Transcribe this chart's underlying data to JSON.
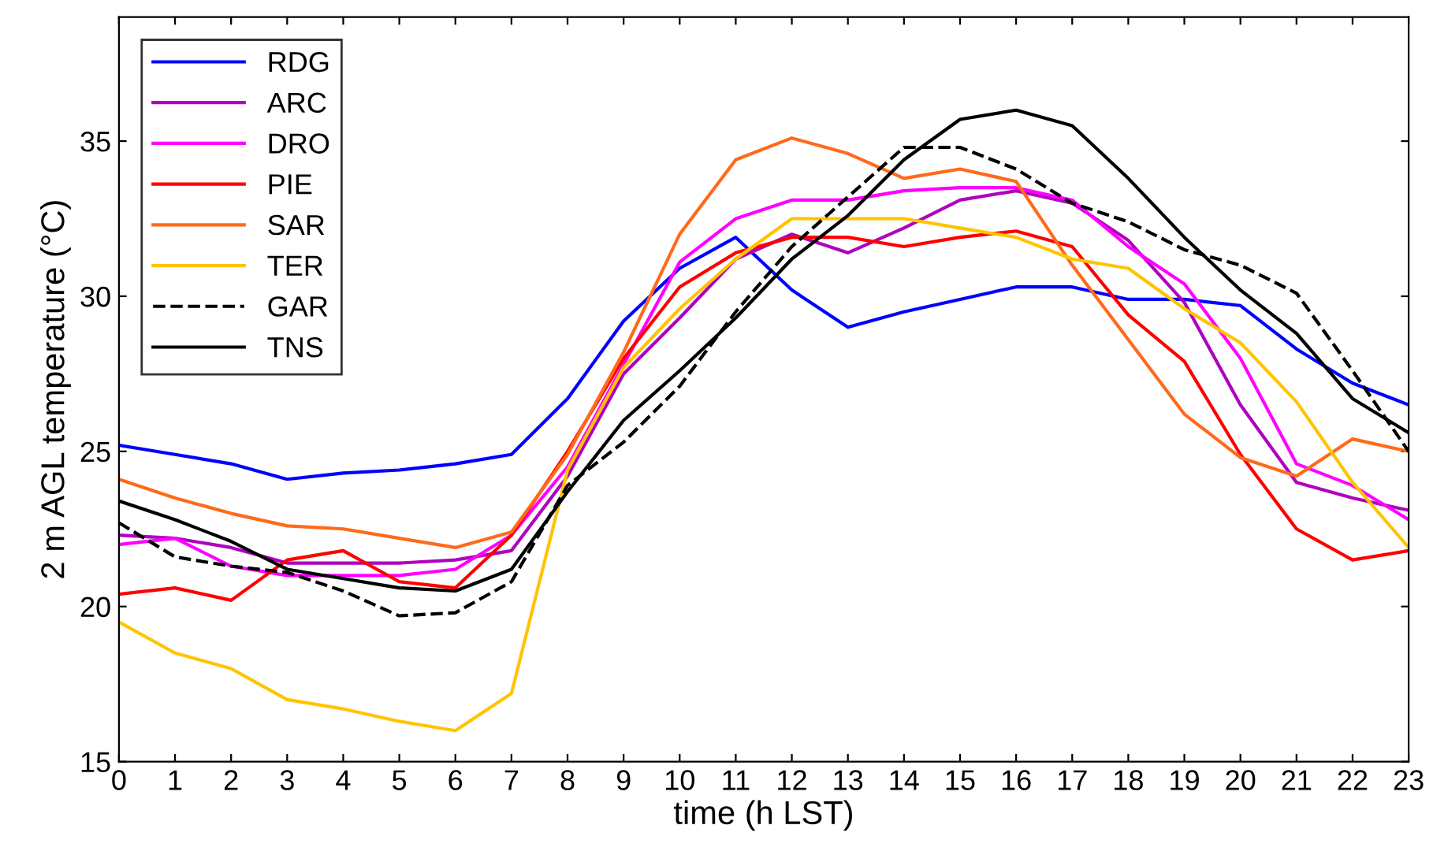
{
  "chart_data": {
    "type": "line",
    "xlabel": "time (h LST)",
    "ylabel": "2 m AGL temperature (°C)",
    "x": [
      0,
      1,
      2,
      3,
      4,
      5,
      6,
      7,
      8,
      9,
      10,
      11,
      12,
      13,
      14,
      15,
      16,
      17,
      18,
      19,
      20,
      21,
      22,
      23
    ],
    "xlim": [
      0,
      23
    ],
    "xticks": [
      0,
      1,
      2,
      3,
      4,
      5,
      6,
      7,
      8,
      9,
      10,
      11,
      12,
      13,
      14,
      15,
      16,
      17,
      18,
      19,
      20,
      21,
      22,
      23
    ],
    "ylim": [
      15,
      39
    ],
    "yticks": [
      15,
      20,
      25,
      30,
      35
    ],
    "grid": false,
    "legend": "top left",
    "series": [
      {
        "name": "RDG",
        "color": "#0000ff",
        "line_style": "solid",
        "values": [
          25.2,
          24.9,
          24.6,
          24.1,
          24.3,
          24.4,
          24.6,
          24.9,
          26.7,
          29.2,
          30.9,
          31.9,
          30.2,
          29.0,
          29.5,
          29.9,
          30.3,
          30.3,
          29.9,
          29.9,
          29.7,
          28.3,
          27.2,
          26.5
        ]
      },
      {
        "name": "ARC",
        "color": "#b000c0",
        "line_style": "solid",
        "values": [
          22.3,
          22.2,
          21.9,
          21.4,
          21.4,
          21.4,
          21.5,
          21.8,
          24.2,
          27.5,
          29.3,
          31.2,
          32.0,
          31.4,
          32.2,
          33.1,
          33.4,
          33.0,
          31.8,
          29.8,
          26.5,
          24.0,
          23.5,
          23.1
        ]
      },
      {
        "name": "DRO",
        "color": "#ff00ff",
        "line_style": "solid",
        "values": [
          22.0,
          22.2,
          21.3,
          21.0,
          21.0,
          21.0,
          21.2,
          22.3,
          24.5,
          27.8,
          31.1,
          32.5,
          33.1,
          33.1,
          33.4,
          33.5,
          33.5,
          33.1,
          31.6,
          30.4,
          28.0,
          24.6,
          23.9,
          22.8
        ]
      },
      {
        "name": "PIE",
        "color": "#ff0000",
        "line_style": "solid",
        "values": [
          20.4,
          20.6,
          20.2,
          21.5,
          21.8,
          20.8,
          20.6,
          22.3,
          25.0,
          28.0,
          30.3,
          31.4,
          31.9,
          31.9,
          31.6,
          31.9,
          32.1,
          31.6,
          29.4,
          27.9,
          24.9,
          22.5,
          21.5,
          21.8
        ]
      },
      {
        "name": "SAR",
        "color": "#ff6a1a",
        "line_style": "solid",
        "values": [
          24.1,
          23.5,
          23.0,
          22.6,
          22.5,
          22.2,
          21.9,
          22.4,
          24.9,
          28.2,
          32.0,
          34.4,
          35.1,
          34.6,
          33.8,
          34.1,
          33.7,
          31.0,
          28.6,
          26.2,
          24.8,
          24.2,
          25.4,
          25.0
        ]
      },
      {
        "name": "TER",
        "color": "#ffc400",
        "line_style": "solid",
        "values": [
          19.5,
          18.5,
          18.0,
          17.0,
          16.7,
          16.3,
          16.0,
          17.2,
          24.4,
          27.7,
          29.6,
          31.2,
          32.5,
          32.5,
          32.5,
          32.2,
          31.9,
          31.2,
          30.9,
          29.6,
          28.5,
          26.6,
          24.0,
          21.9
        ]
      },
      {
        "name": "GAR",
        "color": "#000000",
        "line_style": "dashed",
        "values": [
          22.7,
          21.6,
          21.3,
          21.1,
          20.5,
          19.7,
          19.8,
          20.8,
          23.9,
          25.3,
          27.1,
          29.5,
          31.6,
          33.2,
          34.8,
          34.8,
          34.1,
          33.0,
          32.4,
          31.5,
          31.0,
          30.1,
          27.6,
          25.0
        ]
      },
      {
        "name": "TNS",
        "color": "#000000",
        "line_style": "solid",
        "values": [
          23.4,
          22.8,
          22.1,
          21.2,
          20.9,
          20.6,
          20.5,
          21.2,
          23.7,
          26.0,
          27.6,
          29.3,
          31.2,
          32.6,
          34.4,
          35.7,
          36.0,
          35.5,
          33.8,
          31.9,
          30.2,
          28.8,
          26.7,
          25.6
        ]
      }
    ]
  }
}
